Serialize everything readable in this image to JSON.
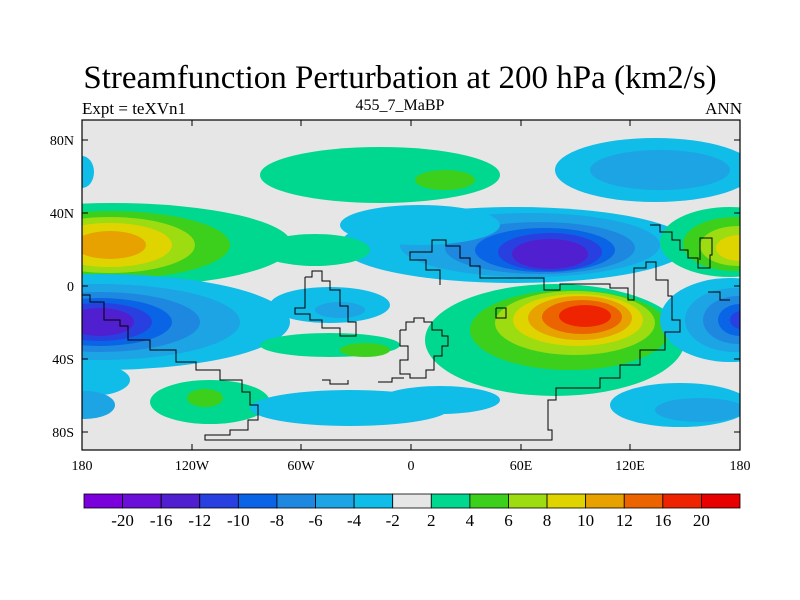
{
  "title": "Streamfunction Perturbation at 200 hPa (km2/s)",
  "subtitle_left": "Expt = teXVn1",
  "subtitle_center": "455_7_MaBP",
  "subtitle_right": "ANN",
  "x_ticks": [
    "180",
    "120W",
    "60W",
    "0",
    "60E",
    "120E",
    "180"
  ],
  "y_ticks": [
    "80N",
    "40N",
    "0",
    "40S",
    "80S"
  ],
  "colorbar_labels": [
    "-20",
    "-16",
    "-12",
    "-10",
    "-8",
    "-6",
    "-4",
    "-2",
    "2",
    "4",
    "6",
    "8",
    "10",
    "12",
    "16",
    "20"
  ],
  "colorbar_colors": [
    "#7a00dc",
    "#6a10d8",
    "#5020d0",
    "#2840e0",
    "#0a64e6",
    "#1e88e0",
    "#1ca4e4",
    "#10bce8",
    "#e6e6e6",
    "#00d890",
    "#3cd01c",
    "#9cdc10",
    "#e0d400",
    "#e8a200",
    "#ec6400",
    "#ee2400",
    "#e80000"
  ],
  "chart_data": {
    "type": "heatmap",
    "variable": "Streamfunction Perturbation at 200 hPa",
    "units": "km2/s",
    "x_range": [
      -180,
      180
    ],
    "y_range": [
      -90,
      90
    ],
    "levels": [
      -20,
      -16,
      -12,
      -10,
      -8,
      -6,
      -4,
      -2,
      2,
      4,
      6,
      8,
      10,
      12,
      16,
      20
    ]
  }
}
